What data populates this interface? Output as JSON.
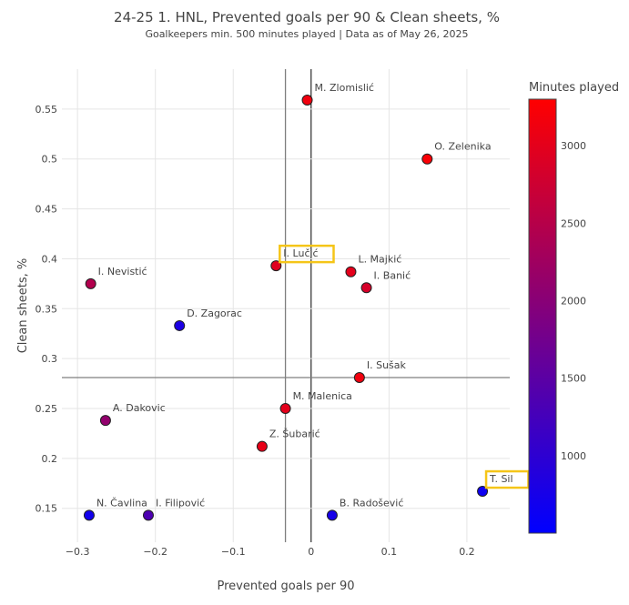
{
  "chart_data": {
    "type": "scatter",
    "title": "24-25 1. HNL, Prevented goals per 90 & Clean sheets, %",
    "subtitle": "Goalkeepers min. 500 minutes played | Data as of May 26, 2025",
    "xlabel": "Prevented goals per 90",
    "ylabel": "Clean sheets, %",
    "xlim": [
      -0.32,
      0.255
    ],
    "ylim": [
      0.116,
      0.59
    ],
    "x_ticks": [
      "−0.3",
      "−0.2",
      "−0.1",
      "0",
      "0.1",
      "0.2"
    ],
    "x_tick_values": [
      -0.3,
      -0.2,
      -0.1,
      0,
      0.1,
      0.2
    ],
    "y_ticks": [
      "0.15",
      "0.2",
      "0.25",
      "0.3",
      "0.35",
      "0.4",
      "0.45",
      "0.5",
      "0.55"
    ],
    "y_tick_values": [
      0.15,
      0.2,
      0.25,
      0.3,
      0.35,
      0.4,
      0.45,
      0.5,
      0.55
    ],
    "grid": true,
    "mean_lines": {
      "x": -0.033,
      "y": 0.281
    },
    "colorbar": {
      "title": "Minutes played",
      "range": [
        500,
        3300
      ],
      "ticks": [
        "1000",
        "1500",
        "2000",
        "2500",
        "3000"
      ],
      "tick_values": [
        1000,
        1500,
        2000,
        2500,
        3000
      ],
      "low_color": "#0000ff",
      "high_color": "#ff0000"
    },
    "points": [
      {
        "label": "M. Zlomislić",
        "x": -0.005,
        "y": 0.559,
        "minutes": 3150
      },
      {
        "label": "O. Zelenika",
        "x": 0.149,
        "y": 0.5,
        "minutes": 3250
      },
      {
        "label": "I. Lučić",
        "x": -0.045,
        "y": 0.393,
        "minutes": 2950,
        "highlight": true
      },
      {
        "label": "L. Majkić",
        "x": 0.051,
        "y": 0.387,
        "minutes": 3000
      },
      {
        "label": "I. Banić",
        "x": 0.071,
        "y": 0.371,
        "minutes": 2850
      },
      {
        "label": "I. Nevistić",
        "x": -0.283,
        "y": 0.375,
        "minutes": 2450
      },
      {
        "label": "D. Zagorac",
        "x": -0.169,
        "y": 0.333,
        "minutes": 800
      },
      {
        "label": "I. Sušak",
        "x": 0.062,
        "y": 0.281,
        "minutes": 3150
      },
      {
        "label": "M. Malenica",
        "x": -0.033,
        "y": 0.25,
        "minutes": 3000
      },
      {
        "label": "A. Dakovic",
        "x": -0.264,
        "y": 0.238,
        "minutes": 2100
      },
      {
        "label": "Z. Šubarić",
        "x": -0.063,
        "y": 0.212,
        "minutes": 3050
      },
      {
        "label": "T. Sil",
        "x": 0.22,
        "y": 0.167,
        "minutes": 650,
        "highlight": true
      },
      {
        "label": "N. Čavlina",
        "x": -0.285,
        "y": 0.143,
        "minutes": 700
      },
      {
        "label": "I. Filipović",
        "x": -0.209,
        "y": 0.143,
        "minutes": 1350
      },
      {
        "label": "B. Radošević",
        "x": 0.027,
        "y": 0.143,
        "minutes": 750
      }
    ],
    "colors": {
      "highlight_box": "#f5c518",
      "grid": "#e5e5e5",
      "mean_line": "#7f7f7f"
    }
  }
}
